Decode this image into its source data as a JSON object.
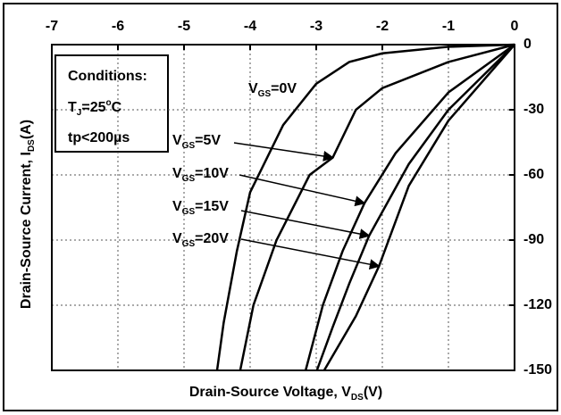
{
  "chart_data": {
    "type": "line",
    "x_label": {
      "text": "Drain-Source Voltage, V",
      "sub": "DS",
      "after": "(V)"
    },
    "y_label": {
      "text": "Drain-Source Current, I",
      "sub": "DS",
      "after": "(A)"
    },
    "conditions": {
      "title": "Conditions:",
      "tj": {
        "text": "T",
        "sub": "J",
        "mid": "=25",
        "sup": "o",
        "after": "C"
      },
      "tp": "tp<200µs"
    },
    "xlim": [
      -7,
      0
    ],
    "ylim": [
      -150,
      0
    ],
    "xticks": [
      -7,
      -6,
      -5,
      -4,
      -3,
      -2,
      -1,
      0
    ],
    "yticks": [
      0,
      -30,
      -60,
      -90,
      -120,
      -150
    ],
    "grid": true,
    "color": "#000000",
    "series": [
      {
        "label": {
          "text": "V",
          "sub": "GS",
          "after": "=0V"
        },
        "x": [
          0,
          -1,
          -2,
          -2.5,
          -3,
          -3.5,
          -4,
          -4.2,
          -4.4,
          -4.5
        ],
        "values": [
          0,
          -1,
          -4,
          -8,
          -18,
          -37,
          -68,
          -95,
          -128,
          -150
        ]
      },
      {
        "label": {
          "text": "V",
          "sub": "GS",
          "after": "=5V"
        },
        "x": [
          0,
          -1,
          -2,
          -2.4,
          -2.75,
          -3.1,
          -3.6,
          -3.95,
          -4.15
        ],
        "values": [
          0,
          -8,
          -20,
          -30,
          -52,
          -60,
          -90,
          -120,
          -150
        ]
      },
      {
        "label": {
          "text": "V",
          "sub": "GS",
          "after": "=10V"
        },
        "x": [
          0,
          -1,
          -1.8,
          -2.27,
          -2.6,
          -2.9,
          -3.16
        ],
        "values": [
          0,
          -22,
          -50,
          -73,
          -95,
          -120,
          -150
        ]
      },
      {
        "label": {
          "text": "V",
          "sub": "GS",
          "after": "=15V"
        },
        "x": [
          0,
          -1,
          -1.6,
          -2.2,
          -2.5,
          -2.75,
          -2.99
        ],
        "values": [
          0,
          -30,
          -55,
          -88,
          -110,
          -130,
          -150
        ]
      },
      {
        "label": {
          "text": "V",
          "sub": "GS",
          "after": "=20V"
        },
        "x": [
          0,
          -1,
          -1.6,
          -2.05,
          -2.4,
          -2.88
        ],
        "values": [
          0,
          -35,
          -65,
          -102,
          -125,
          -150
        ]
      }
    ]
  }
}
